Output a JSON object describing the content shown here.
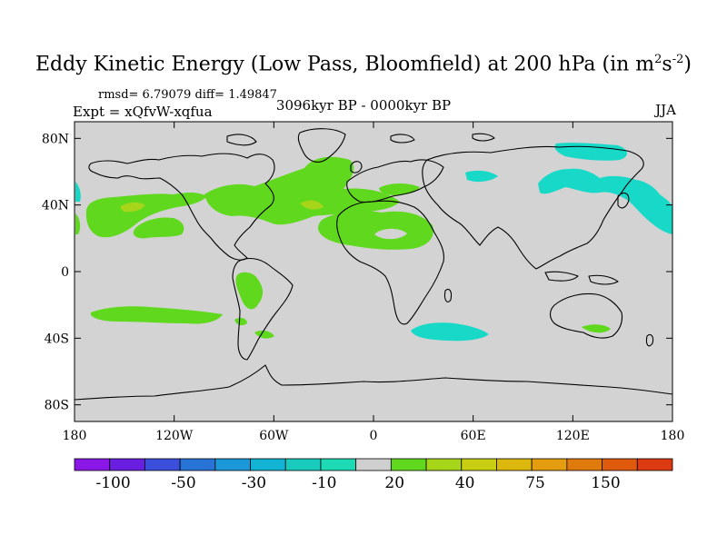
{
  "title_main": "Eddy Kinetic Energy (Low Pass, Bloomfield) at 200 hPa (in m",
  "title_sup1": "2",
  "title_mid": "s",
  "title_sup2": "-2",
  "title_end": ")",
  "stats": "rmsd= 6.79079  diff= 1.49847",
  "expt": "Expt = xQfvW-xqfua",
  "period": "3096kyr BP - 0000kyr BP",
  "season": "JJA",
  "lat_labels": [
    "80N",
    "40N",
    "0",
    "40S",
    "80S"
  ],
  "lat_values": [
    80,
    40,
    0,
    -40,
    -80
  ],
  "lon_labels": [
    "180",
    "120W",
    "60W",
    "0",
    "60E",
    "120E",
    "180"
  ],
  "lon_values": [
    -180,
    -120,
    -60,
    0,
    60,
    120,
    180
  ],
  "colorbar": {
    "colors": [
      "#8a17e6",
      "#6a1ee0",
      "#3c4fdc",
      "#2773d6",
      "#1b98d9",
      "#12b3d3",
      "#18cbbd",
      "#1dd9b4",
      "#cfcfcf",
      "#5fd81e",
      "#a6d519",
      "#c9ce12",
      "#dcb80e",
      "#e49d0e",
      "#e07a0c",
      "#e05a0e",
      "#dc3a12"
    ],
    "labels": [
      "-100",
      "-50",
      "-30",
      "-10",
      "20",
      "40",
      "75",
      "150"
    ]
  },
  "colors": {
    "ocean_land": "#d3d3d3",
    "green": "#5fd81e",
    "light_green": "#a6d519",
    "cyan": "#18d9c8",
    "coast": "#000000"
  }
}
